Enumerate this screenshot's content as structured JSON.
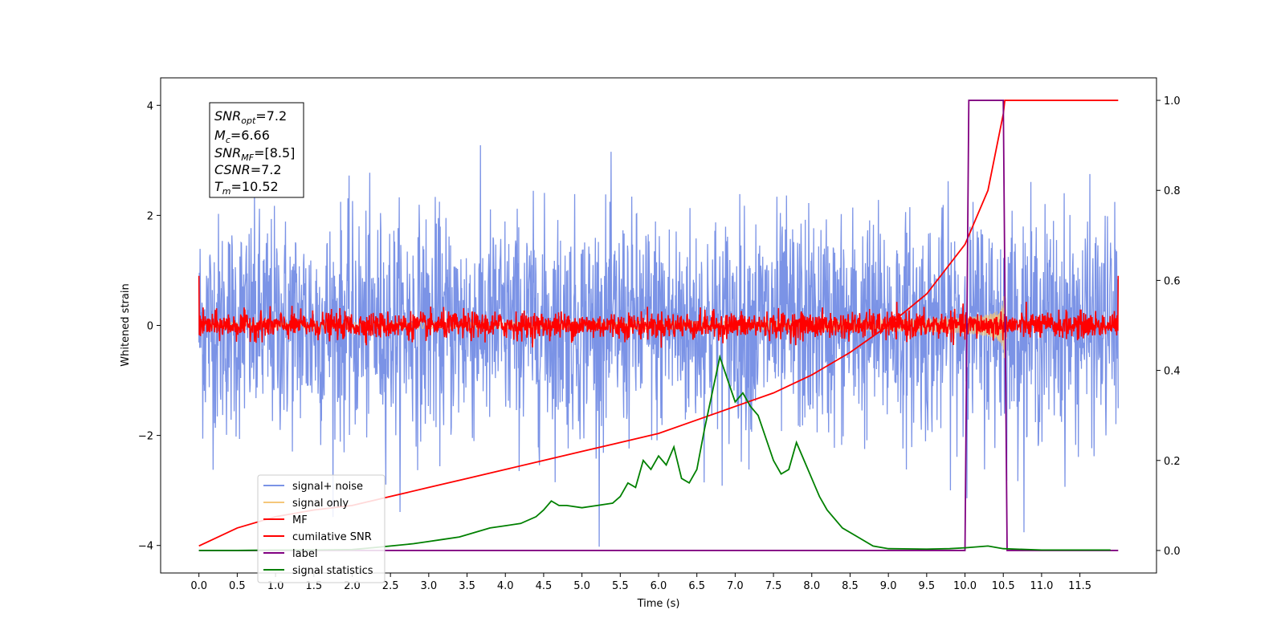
{
  "chart_data": {
    "type": "line",
    "title": "",
    "xlabel": "Time (s)",
    "ylabel": "Whitened strain",
    "ylabel_right": "",
    "xlim": [
      -0.5,
      12.5
    ],
    "ylim": [
      -4.5,
      4.5
    ],
    "ylim_right": [
      -0.05,
      1.05
    ],
    "x_ticks": [
      "0.0",
      "0.5",
      "1.0",
      "1.5",
      "2.0",
      "2.5",
      "3.0",
      "3.5",
      "4.0",
      "4.5",
      "5.0",
      "5.5",
      "6.0",
      "6.5",
      "7.0",
      "7.5",
      "8.0",
      "8.5",
      "9.0",
      "9.5",
      "10.0",
      "10.5",
      "11.0",
      "11.5"
    ],
    "x_tick_values": [
      0.0,
      0.5,
      1.0,
      1.5,
      2.0,
      2.5,
      3.0,
      3.5,
      4.0,
      4.5,
      5.0,
      5.5,
      6.0,
      6.5,
      7.0,
      7.5,
      8.0,
      8.5,
      9.0,
      9.5,
      10.0,
      10.5,
      11.0,
      11.5
    ],
    "y_ticks": [
      "−4",
      "−2",
      "0",
      "2",
      "4"
    ],
    "y_tick_values": [
      -4,
      -2,
      0,
      2,
      4
    ],
    "y_ticks_right": [
      "0.0",
      "0.2",
      "0.4",
      "0.6",
      "0.8",
      "1.0"
    ],
    "y_tick_values_right": [
      0.0,
      0.2,
      0.4,
      0.6,
      0.8,
      1.0
    ],
    "grid": false,
    "legend_position": "lower-left",
    "info_box": {
      "snr_opt": {
        "base": "SNR",
        "sub": "opt",
        "value": "=7.2"
      },
      "mc": {
        "base": "M",
        "sub": "c",
        "value": "=6.66"
      },
      "snr_mf": {
        "base": "SNR",
        "sub": "MF",
        "value": "=[8.5]"
      },
      "csnr": {
        "base": "CSNR",
        "value": "=7.2"
      },
      "tm": {
        "base": "T",
        "sub": "m",
        "value": "=10.52"
      }
    },
    "series": [
      {
        "name": "signal+ noise",
        "color": "#7b93e6",
        "axis": "left",
        "kind": "noise",
        "x_range": [
          0.0,
          12.0
        ],
        "std": 1.0,
        "samples": 2400
      },
      {
        "name": "signal only",
        "color": "#f5c77a",
        "axis": "left",
        "kind": "chirp",
        "x_range": [
          0.0,
          10.52
        ],
        "peak_amplitude": 1.0
      },
      {
        "name": "MF",
        "color": "#ff0000",
        "axis": "left",
        "kind": "noise",
        "x_range": [
          0.0,
          12.0
        ],
        "std": 0.12,
        "samples": 2400
      },
      {
        "name": "cumilative SNR",
        "color": "#ff0000",
        "axis": "right",
        "x": [
          0.0,
          0.5,
          1.0,
          1.5,
          2.0,
          2.5,
          3.0,
          3.5,
          4.0,
          4.5,
          5.0,
          5.5,
          6.0,
          6.5,
          7.0,
          7.5,
          8.0,
          8.5,
          9.0,
          9.5,
          10.0,
          10.3,
          10.5,
          10.52,
          12.0
        ],
        "y": [
          0.01,
          0.05,
          0.075,
          0.09,
          0.1,
          0.12,
          0.14,
          0.16,
          0.18,
          0.2,
          0.22,
          0.24,
          0.26,
          0.29,
          0.32,
          0.35,
          0.39,
          0.44,
          0.5,
          0.57,
          0.68,
          0.8,
          0.97,
          1.0,
          1.0
        ]
      },
      {
        "name": "label",
        "color": "#800080",
        "axis": "right",
        "x": [
          0.0,
          10.0,
          10.05,
          10.5,
          10.55,
          10.55,
          12.0
        ],
        "y": [
          0.0,
          0.0,
          1.0,
          1.0,
          0.0,
          0.0,
          0.0
        ]
      },
      {
        "name": "signal statistics",
        "color": "#008000",
        "axis": "right",
        "x": [
          0.0,
          0.5,
          1.0,
          1.5,
          2.0,
          2.2,
          2.5,
          2.8,
          3.0,
          3.2,
          3.4,
          3.6,
          3.8,
          4.0,
          4.2,
          4.4,
          4.5,
          4.6,
          4.7,
          4.8,
          5.0,
          5.2,
          5.4,
          5.5,
          5.6,
          5.7,
          5.8,
          5.9,
          6.0,
          6.1,
          6.2,
          6.3,
          6.4,
          6.5,
          6.6,
          6.7,
          6.8,
          6.9,
          7.0,
          7.1,
          7.2,
          7.3,
          7.4,
          7.5,
          7.6,
          7.7,
          7.8,
          7.9,
          8.0,
          8.1,
          8.2,
          8.4,
          8.6,
          8.8,
          9.0,
          9.5,
          9.8,
          10.0,
          10.3,
          10.5,
          11.0,
          11.5,
          11.9
        ],
        "y": [
          0.0,
          0.0,
          0.001,
          0.001,
          0.002,
          0.005,
          0.01,
          0.015,
          0.02,
          0.025,
          0.03,
          0.04,
          0.05,
          0.055,
          0.06,
          0.075,
          0.09,
          0.11,
          0.1,
          0.1,
          0.095,
          0.1,
          0.105,
          0.12,
          0.15,
          0.14,
          0.2,
          0.18,
          0.21,
          0.19,
          0.23,
          0.16,
          0.15,
          0.18,
          0.27,
          0.35,
          0.43,
          0.38,
          0.33,
          0.35,
          0.32,
          0.3,
          0.25,
          0.2,
          0.17,
          0.18,
          0.24,
          0.2,
          0.16,
          0.12,
          0.09,
          0.05,
          0.03,
          0.01,
          0.004,
          0.003,
          0.004,
          0.006,
          0.01,
          0.004,
          0.001,
          0.001,
          0.001
        ]
      }
    ]
  }
}
